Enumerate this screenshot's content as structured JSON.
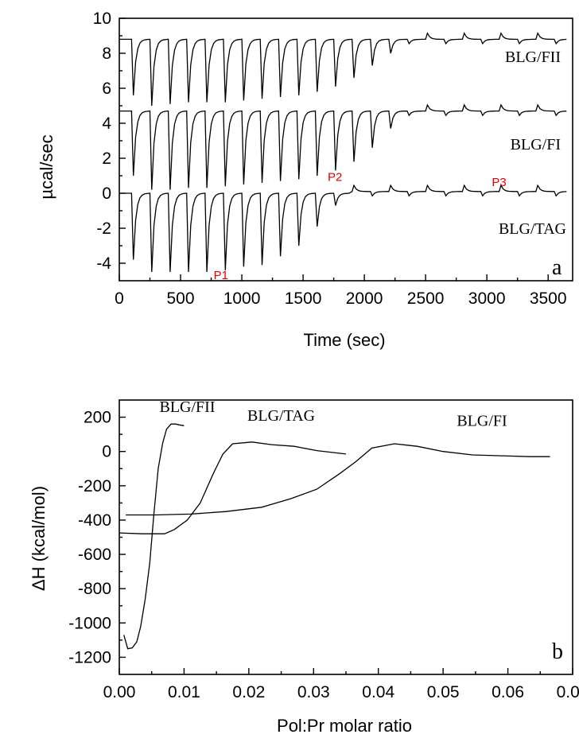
{
  "chart_data": [
    {
      "type": "line",
      "panel_label": "a",
      "xlabel": "Time (sec)",
      "ylabel": "µcal/sec",
      "xlim": [
        0,
        3700
      ],
      "ylim": [
        -5,
        10
      ],
      "xticks": [
        0,
        500,
        1000,
        1500,
        2000,
        2500,
        3000,
        3500
      ],
      "yticks": [
        -4,
        -2,
        0,
        2,
        4,
        6,
        8,
        10
      ],
      "injection_start_sec": 100,
      "injection_interval_sec": 150,
      "series": [
        {
          "name": "BLG/FII",
          "baseline": 8.8,
          "peak_minima": [
            5.6,
            5.0,
            5.1,
            5.2,
            5.2,
            5.2,
            5.3,
            5.4,
            5.5,
            5.6,
            5.8,
            6.1,
            6.6,
            7.3,
            8.0
          ],
          "late_baseline": 8.8
        },
        {
          "name": "BLG/FI",
          "baseline": 4.7,
          "peak_minima": [
            1.0,
            0.2,
            0.2,
            0.3,
            0.3,
            0.4,
            0.5,
            0.6,
            0.7,
            0.8,
            1.0,
            1.3,
            1.8,
            2.6,
            3.7
          ],
          "late_baseline": 4.7
        },
        {
          "name": "BLG/TAG",
          "baseline": 0.0,
          "peak_minima": [
            -3.8,
            -4.5,
            -4.5,
            -4.5,
            -4.5,
            -4.4,
            -4.2,
            -4.1,
            -3.6,
            -3.0,
            -1.9,
            -0.7
          ],
          "late_baseline": 0.1
        }
      ],
      "annotations": [
        {
          "text": "P1",
          "x": 830,
          "y": -4.9
        },
        {
          "text": "P2",
          "x": 1760,
          "y": 0.7
        },
        {
          "text": "P3",
          "x": 3100,
          "y": 0.4
        }
      ]
    },
    {
      "type": "line",
      "panel_label": "b",
      "xlabel": "Pol:Pr molar ratio",
      "ylabel": "ΔH (kcal/mol)",
      "xlim": [
        0,
        0.07
      ],
      "ylim": [
        -1300,
        300
      ],
      "xticks": [
        0.0,
        0.01,
        0.02,
        0.03,
        0.04,
        0.05,
        0.06,
        0.07
      ],
      "xtick_labels": [
        "0.00",
        "0.01",
        "0.02",
        "0.03",
        "0.04",
        "0.05",
        "0.06",
        "0.07"
      ],
      "yticks": [
        -1200,
        -1000,
        -800,
        -600,
        -400,
        -200,
        0,
        200
      ],
      "series": [
        {
          "name": "BLG/FII",
          "x": [
            0.0007,
            0.0013,
            0.002,
            0.0027,
            0.0033,
            0.004,
            0.0047,
            0.0053,
            0.006,
            0.0067,
            0.0073,
            0.008,
            0.0087,
            0.0093,
            0.01
          ],
          "y": [
            -1070,
            -1150,
            -1145,
            -1110,
            -1020,
            -860,
            -650,
            -380,
            -100,
            50,
            130,
            160,
            160,
            155,
            150
          ]
        },
        {
          "name": "BLG/TAG",
          "x": [
            0.0,
            0.0035,
            0.007,
            0.0085,
            0.0105,
            0.0125,
            0.0145,
            0.016,
            0.0175,
            0.0205,
            0.0235,
            0.027,
            0.0305,
            0.035
          ],
          "y": [
            -475,
            -480,
            -480,
            -455,
            -400,
            -300,
            -130,
            -15,
            45,
            55,
            40,
            30,
            5,
            -15
          ]
        },
        {
          "name": "BLG/FI",
          "x": [
            0.001,
            0.0055,
            0.011,
            0.0165,
            0.022,
            0.0265,
            0.0305,
            0.034,
            0.0365,
            0.039,
            0.0425,
            0.046,
            0.05,
            0.0545,
            0.059,
            0.0635,
            0.0665
          ],
          "y": [
            -370,
            -370,
            -365,
            -350,
            -325,
            -275,
            -220,
            -130,
            -60,
            20,
            45,
            30,
            0,
            -20,
            -25,
            -30,
            -30
          ]
        }
      ],
      "series_label_positions": [
        {
          "text": "BLG/FII",
          "x": 0.0105,
          "y": 230
        },
        {
          "text": "BLG/TAG",
          "x": 0.025,
          "y": 180
        },
        {
          "text": "BLG/FI",
          "x": 0.056,
          "y": 150
        }
      ]
    }
  ]
}
